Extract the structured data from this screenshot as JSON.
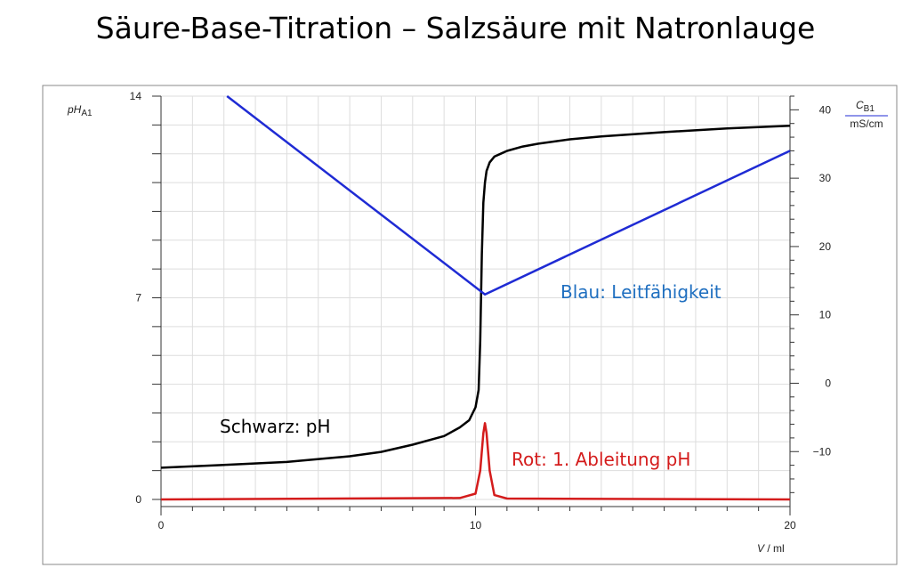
{
  "title": "Säure-Base-Titration – Salzsäure mit Natronlauge",
  "chart_data": {
    "type": "line",
    "x_label": "V",
    "x_unit": "ml",
    "xlim": [
      0,
      20
    ],
    "x_ticks": [
      0,
      10,
      20
    ],
    "y_left": {
      "label": "pH",
      "label_sub": "A1",
      "ylim": [
        0,
        14
      ],
      "ticks": [
        0,
        7,
        14
      ]
    },
    "y_right": {
      "label": "C",
      "label_sub": "B1",
      "unit": "mS/cm",
      "ylim": [
        -17,
        42
      ],
      "ticks": [
        -10,
        0,
        10,
        20,
        30,
        40
      ]
    },
    "grid": true,
    "colors": {
      "ph": "#000000",
      "conductivity": "#1f2bd4",
      "derivative": "#d41c1c",
      "conductivity_label": "#1f6fc0"
    },
    "annotations": {
      "blue": "Blau: Leitfähigkeit",
      "black": "Schwarz: pH",
      "red": "Rot: 1. Ableitung pH"
    },
    "series": [
      {
        "key": "ph",
        "axis": "left",
        "x": [
          0,
          2,
          4,
          6,
          7,
          8,
          9,
          9.5,
          9.8,
          10.0,
          10.1,
          10.15,
          10.2,
          10.25,
          10.3,
          10.35,
          10.45,
          10.6,
          10.8,
          11,
          11.5,
          12,
          13,
          14,
          16,
          18,
          20
        ],
        "y": [
          1.1,
          1.2,
          1.3,
          1.5,
          1.65,
          1.9,
          2.2,
          2.5,
          2.75,
          3.2,
          3.8,
          5.5,
          8.5,
          10.3,
          11.0,
          11.4,
          11.7,
          11.9,
          12.0,
          12.1,
          12.25,
          12.35,
          12.5,
          12.6,
          12.75,
          12.88,
          12.97
        ]
      },
      {
        "key": "conductivity",
        "axis": "right",
        "x": [
          2.1,
          10.3,
          20
        ],
        "y": [
          42,
          13,
          34
        ]
      },
      {
        "key": "derivative",
        "axis": "left",
        "x": [
          0,
          9.5,
          10.0,
          10.15,
          10.25,
          10.3,
          10.35,
          10.45,
          10.6,
          11,
          20
        ],
        "y": [
          0,
          0.05,
          0.2,
          1.0,
          2.3,
          2.65,
          2.3,
          1.0,
          0.15,
          0.03,
          0
        ]
      }
    ]
  }
}
